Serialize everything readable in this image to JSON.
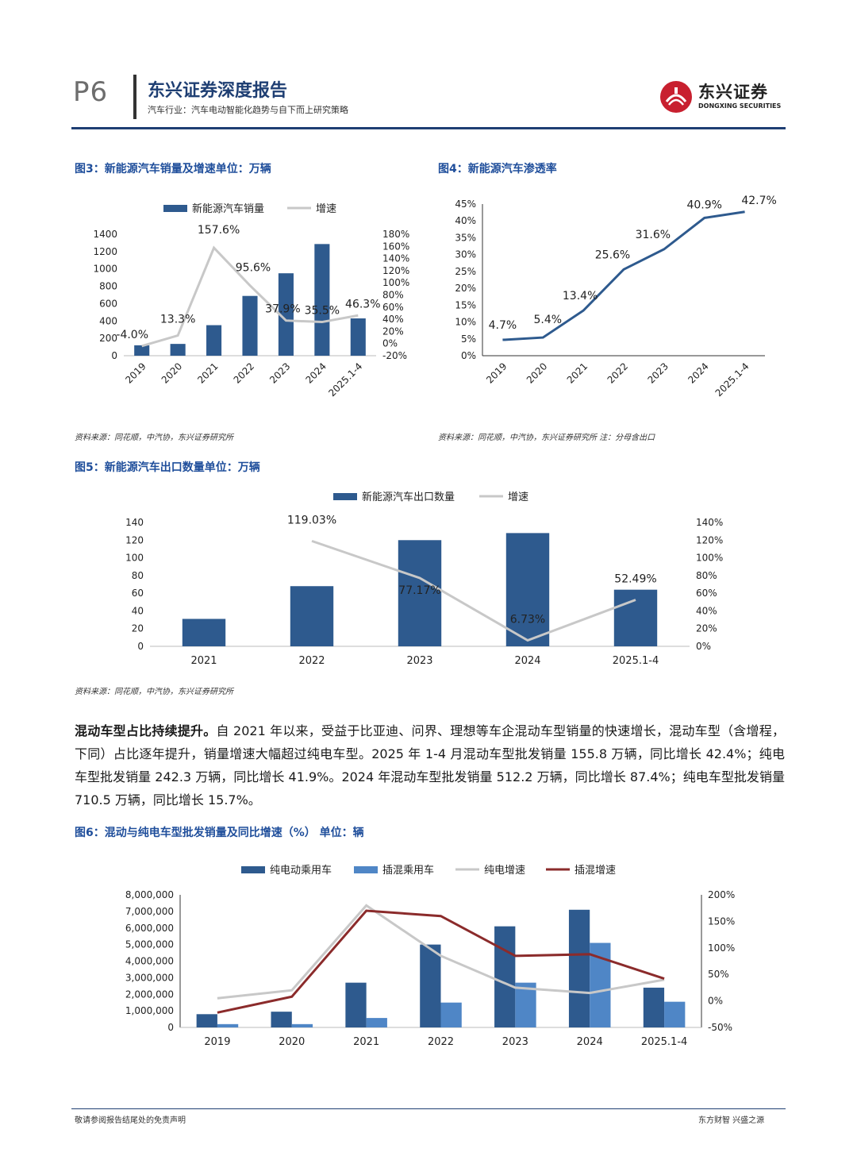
{
  "header": {
    "page": "P6",
    "title": "东兴证券深度报告",
    "subtitle": "汽车行业：汽车电动智能化趋势与自下而上研究策略",
    "logo_cn": "东兴证券",
    "logo_en": "DONGXING SECURITIES"
  },
  "colors": {
    "brand": "#1f3f73",
    "bar": "#2e5a8e",
    "bar2": "#4f86c6",
    "grey_line": "#c8c8c8",
    "red_line": "#8b2b2b",
    "logo_red": "#c8202f"
  },
  "fig3": {
    "title": "图3：新能源汽车销量及增速单位：万辆",
    "source": "资料来源：同花顺，中汽协，东兴证券研究所",
    "chart_data": {
      "type": "bar",
      "categories": [
        "2019",
        "2020",
        "2021",
        "2022",
        "2023",
        "2024",
        "2025.1-4"
      ],
      "series": [
        {
          "name": "新能源汽车销量",
          "type": "bar",
          "axis": "left",
          "values": [
            120,
            136,
            352,
            689,
            950,
            1287,
            430
          ]
        },
        {
          "name": "增速",
          "type": "line",
          "axis": "right",
          "values": [
            -4.0,
            13.3,
            157.6,
            95.6,
            37.9,
            35.5,
            46.3
          ]
        }
      ],
      "labels": [
        "-4.0%",
        "13.3%",
        "157.6%",
        "95.6%",
        "37.9%",
        "35.5%",
        "46.3%"
      ],
      "ylim": [
        0,
        1400
      ],
      "y_ticks": [
        "0",
        "200",
        "400",
        "600",
        "800",
        "1000",
        "1200",
        "1400"
      ],
      "y2lim": [
        -20,
        180
      ],
      "y2_ticks": [
        "-20%",
        "0%",
        "20%",
        "40%",
        "60%",
        "80%",
        "100%",
        "120%",
        "140%",
        "160%",
        "180%"
      ],
      "legend": "top-center"
    }
  },
  "fig4": {
    "title": "图4：新能源汽车渗透率",
    "source": "资料来源：同花顺，中汽协，东兴证券研究所 注：分母含出口",
    "chart_data": {
      "type": "line",
      "categories": [
        "2019",
        "2020",
        "2021",
        "2022",
        "2023",
        "2024",
        "2025.1-4"
      ],
      "series": [
        {
          "values": [
            4.7,
            5.4,
            13.4,
            25.6,
            31.6,
            40.9,
            42.7
          ]
        }
      ],
      "labels": [
        "4.7%",
        "5.4%",
        "13.4%",
        "25.6%",
        "31.6%",
        "40.9%",
        "42.7%"
      ],
      "ylim": [
        0,
        45
      ],
      "y_ticks": [
        "0%",
        "5%",
        "10%",
        "15%",
        "20%",
        "25%",
        "30%",
        "35%",
        "40%",
        "45%"
      ]
    }
  },
  "fig5": {
    "title": "图5：新能源汽车出口数量单位：万辆",
    "source": "资料来源：同花顺，中汽协，东兴证券研究所",
    "chart_data": {
      "type": "bar",
      "categories": [
        "2021",
        "2022",
        "2023",
        "2024",
        "2025.1-4"
      ],
      "series": [
        {
          "name": "新能源汽车出口数量",
          "type": "bar",
          "axis": "left",
          "values": [
            31,
            68,
            120,
            128,
            64
          ]
        },
        {
          "name": "增速",
          "type": "line",
          "axis": "right",
          "values": [
            null,
            119.03,
            77.17,
            6.73,
            52.49
          ]
        }
      ],
      "labels": [
        null,
        "119.03%",
        "77.17%",
        "6.73%",
        "52.49%"
      ],
      "ylim": [
        0,
        140
      ],
      "y_ticks": [
        "0",
        "20",
        "40",
        "60",
        "80",
        "100",
        "120",
        "140"
      ],
      "y2lim": [
        0,
        140
      ],
      "y2_ticks": [
        "0%",
        "20%",
        "40%",
        "60%",
        "80%",
        "100%",
        "120%",
        "140%"
      ],
      "legend": "top-center"
    }
  },
  "paragraph": {
    "lead": "混动车型占比持续提升。",
    "body": "自 2021 年以来，受益于比亚迪、问界、理想等车企混动车型销量的快速增长，混动车型（含增程，下同）占比逐年提升，销量增速大幅超过纯电车型。2025 年 1-4 月混动车型批发销量 155.8 万辆，同比增长 42.4%；纯电车型批发销量 242.3 万辆，同比增长 41.9%。2024 年混动车型批发销量 512.2 万辆，同比增长 87.4%；纯电车型批发销量 710.5 万辆，同比增长 15.7%。"
  },
  "fig6": {
    "title": "图6：混动与纯电车型批发销量及同比增速（%） 单位：辆",
    "chart_data": {
      "type": "bar",
      "categories": [
        "2019",
        "2020",
        "2021",
        "2022",
        "2023",
        "2024",
        "2025.1-4"
      ],
      "series": [
        {
          "name": "纯电动乘用车",
          "type": "bar",
          "axis": "left",
          "values": [
            800000,
            950000,
            2700000,
            5000000,
            6100000,
            7100000,
            2400000
          ]
        },
        {
          "name": "插混乘用车",
          "type": "bar",
          "axis": "left",
          "values": [
            200000,
            200000,
            570000,
            1500000,
            2700000,
            5100000,
            1550000
          ]
        },
        {
          "name": "纯电增速",
          "type": "line",
          "axis": "right",
          "values": [
            5,
            20,
            180,
            85,
            25,
            15,
            40
          ]
        },
        {
          "name": "插混增速",
          "type": "line",
          "axis": "right",
          "values": [
            -22,
            8,
            170,
            160,
            85,
            88,
            42
          ]
        }
      ],
      "ylim": [
        0,
        8000000
      ],
      "y_ticks": [
        "0",
        "1,000,000",
        "2,000,000",
        "3,000,000",
        "4,000,000",
        "5,000,000",
        "6,000,000",
        "7,000,000",
        "8,000,000"
      ],
      "y2lim": [
        -50,
        200
      ],
      "y2_ticks": [
        "-50%",
        "0%",
        "50%",
        "100%",
        "150%",
        "200%"
      ],
      "legend": "top-center"
    }
  },
  "footer": {
    "left": "敬请参阅报告结尾处的免责声明",
    "right": "东方财智 兴盛之源"
  }
}
